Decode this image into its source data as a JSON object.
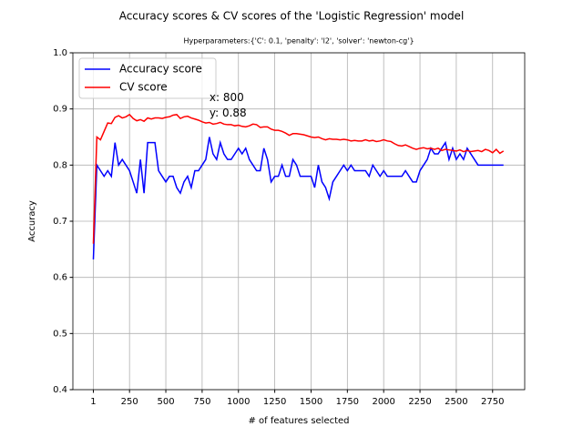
{
  "chart_data": {
    "type": "line",
    "title": "Accuracy scores & CV scores of the 'Logistic Regression' model",
    "subtitle": "Hyperparameters:{'C': 0.1, 'penalty': 'l2', 'solver': 'newton-cg'}",
    "x_label": "# of features selected",
    "y_label": "Accuracy",
    "x": [
      1,
      25,
      50,
      75,
      100,
      125,
      150,
      175,
      200,
      225,
      250,
      275,
      300,
      325,
      350,
      375,
      400,
      425,
      450,
      475,
      500,
      525,
      550,
      575,
      600,
      625,
      650,
      675,
      700,
      725,
      750,
      775,
      800,
      825,
      850,
      875,
      900,
      925,
      950,
      975,
      1000,
      1025,
      1050,
      1075,
      1100,
      1125,
      1150,
      1175,
      1200,
      1225,
      1250,
      1275,
      1300,
      1325,
      1350,
      1375,
      1400,
      1425,
      1450,
      1475,
      1500,
      1525,
      1550,
      1575,
      1600,
      1625,
      1650,
      1675,
      1700,
      1725,
      1750,
      1775,
      1800,
      1825,
      1850,
      1875,
      1900,
      1925,
      1950,
      1975,
      2000,
      2025,
      2050,
      2075,
      2100,
      2125,
      2150,
      2175,
      2200,
      2225,
      2250,
      2275,
      2300,
      2325,
      2350,
      2375,
      2400,
      2425,
      2450,
      2475,
      2500,
      2525,
      2550,
      2575,
      2600,
      2625,
      2650,
      2675,
      2700,
      2725,
      2750,
      2775,
      2800,
      2825
    ],
    "series": [
      {
        "name": "Accuracy score",
        "color": "#0000ff",
        "values": [
          0.632,
          0.8,
          0.79,
          0.78,
          0.79,
          0.78,
          0.84,
          0.8,
          0.81,
          0.8,
          0.79,
          0.77,
          0.75,
          0.81,
          0.75,
          0.84,
          0.84,
          0.84,
          0.79,
          0.78,
          0.77,
          0.78,
          0.78,
          0.76,
          0.75,
          0.77,
          0.78,
          0.76,
          0.79,
          0.79,
          0.8,
          0.81,
          0.85,
          0.82,
          0.81,
          0.84,
          0.82,
          0.81,
          0.81,
          0.82,
          0.83,
          0.82,
          0.83,
          0.81,
          0.8,
          0.79,
          0.79,
          0.83,
          0.81,
          0.77,
          0.78,
          0.78,
          0.8,
          0.78,
          0.78,
          0.81,
          0.8,
          0.78,
          0.78,
          0.78,
          0.78,
          0.76,
          0.8,
          0.77,
          0.76,
          0.74,
          0.77,
          0.78,
          0.79,
          0.8,
          0.79,
          0.8,
          0.79,
          0.79,
          0.79,
          0.79,
          0.78,
          0.8,
          0.79,
          0.78,
          0.79,
          0.78,
          0.78,
          0.78,
          0.78,
          0.78,
          0.79,
          0.78,
          0.77,
          0.77,
          0.79,
          0.8,
          0.81,
          0.83,
          0.82,
          0.82,
          0.83,
          0.84,
          0.81,
          0.83,
          0.81,
          0.82,
          0.81,
          0.83,
          0.82,
          0.81,
          0.8,
          0.8,
          0.8,
          0.8,
          0.8,
          0.8,
          0.8,
          0.8
        ]
      },
      {
        "name": "CV score",
        "color": "#ff0000",
        "values": [
          0.66,
          0.85,
          0.845,
          0.86,
          0.875,
          0.874,
          0.885,
          0.888,
          0.884,
          0.886,
          0.89,
          0.883,
          0.879,
          0.881,
          0.878,
          0.884,
          0.882,
          0.884,
          0.884,
          0.883,
          0.885,
          0.886,
          0.889,
          0.89,
          0.883,
          0.886,
          0.887,
          0.884,
          0.882,
          0.88,
          0.877,
          0.875,
          0.876,
          0.873,
          0.874,
          0.876,
          0.873,
          0.872,
          0.872,
          0.87,
          0.871,
          0.869,
          0.868,
          0.87,
          0.873,
          0.872,
          0.867,
          0.868,
          0.868,
          0.864,
          0.862,
          0.862,
          0.86,
          0.857,
          0.853,
          0.856,
          0.856,
          0.855,
          0.854,
          0.852,
          0.85,
          0.849,
          0.85,
          0.847,
          0.845,
          0.847,
          0.846,
          0.846,
          0.845,
          0.846,
          0.845,
          0.843,
          0.844,
          0.843,
          0.843,
          0.845,
          0.843,
          0.844,
          0.842,
          0.843,
          0.845,
          0.843,
          0.842,
          0.838,
          0.835,
          0.834,
          0.836,
          0.833,
          0.83,
          0.828,
          0.83,
          0.831,
          0.829,
          0.83,
          0.828,
          0.83,
          0.826,
          0.828,
          0.827,
          0.826,
          0.825,
          0.827,
          0.824,
          0.826,
          0.824,
          0.825,
          0.826,
          0.824,
          0.828,
          0.826,
          0.822,
          0.828,
          0.821,
          0.825
        ]
      }
    ],
    "xlim": [
      -140,
      2971
    ],
    "ylim": [
      0.4,
      1.0
    ],
    "xticks": [
      1,
      250,
      500,
      750,
      1000,
      1250,
      1500,
      1750,
      2000,
      2250,
      2500,
      2750
    ],
    "yticks": [
      0.4,
      0.5,
      0.6,
      0.7,
      0.8,
      0.9,
      {
        "value": 1.0,
        "label": "1.0"
      }
    ],
    "grid": true,
    "legend": "upper-left",
    "annotation": {
      "x": 800,
      "y": 0.88,
      "text": [
        "x: 800",
        "y: 0.88"
      ]
    }
  }
}
